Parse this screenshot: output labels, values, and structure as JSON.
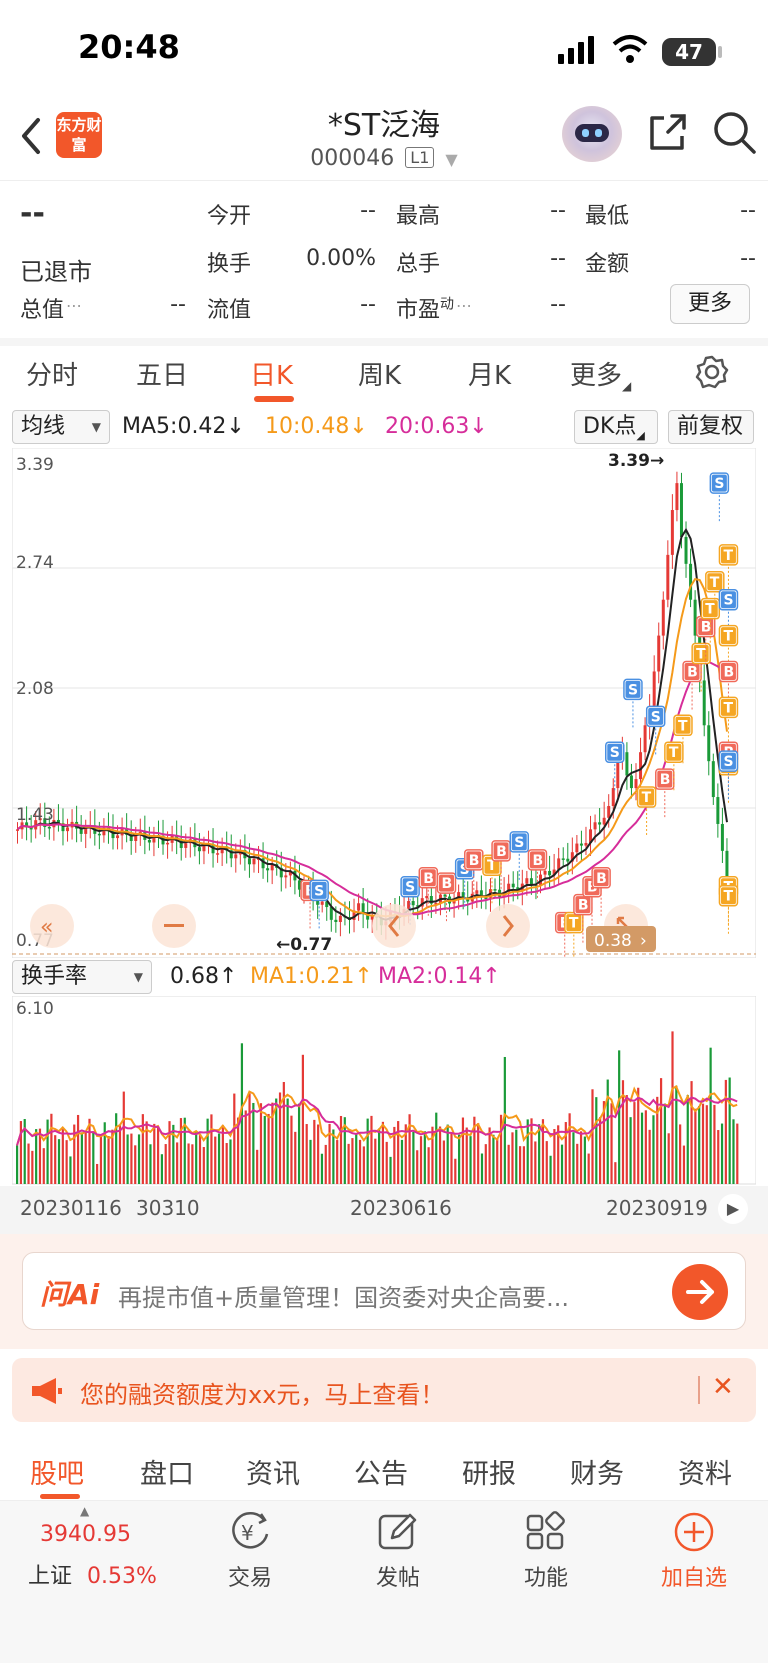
{
  "status_bar": {
    "time": "20:48",
    "battery": "47"
  },
  "header": {
    "logo_text": "东方财富",
    "title": "*ST泛海",
    "code": "000046",
    "board_badge": "L1"
  },
  "quote": {
    "price": "--",
    "status": "已退市",
    "rows": [
      [
        {
          "label": "今开",
          "value": "--"
        },
        {
          "label": "最高",
          "value": "--"
        },
        {
          "label": "最低",
          "value": "--"
        }
      ],
      [
        {
          "label": "换手",
          "value": "0.00%"
        },
        {
          "label": "总手",
          "value": "--"
        },
        {
          "label": "金额",
          "value": "--"
        }
      ],
      [
        {
          "label": "总值",
          "value": "--"
        },
        {
          "label": "流值",
          "value": "--"
        },
        {
          "label": "市盈",
          "sup": "动",
          "value": "--"
        }
      ]
    ],
    "more_label": "更多"
  },
  "period_tabs": {
    "items": [
      "分时",
      "五日",
      "日K",
      "周K",
      "月K",
      "更多"
    ],
    "active": "日K"
  },
  "ma_bar": {
    "selector": "均线",
    "ma5": "MA5:0.42↓",
    "ma10": "10:0.48↓",
    "ma20": "20:0.63↓",
    "dk": "DK点",
    "adjust": "前复权"
  },
  "kline": {
    "y_labels": [
      "3.39",
      "2.74",
      "2.08",
      "1.43",
      "0.77"
    ],
    "max_label": "3.39→",
    "min_label": "←0.77",
    "current_tag": "0.38",
    "colors": {
      "up": "#e53935",
      "down": "#1a9a38",
      "ma5": "#222222",
      "ma10": "#f59a1a",
      "ma20": "#d62d9a",
      "buy": "#f06a5a",
      "sell": "#4a90e2",
      "t": "#f5a623"
    }
  },
  "turnover": {
    "selector": "换手率",
    "value": "0.68↑",
    "ma1": "MA1:0.21↑",
    "ma2": "MA2:0.14↑",
    "max_label": "6.10"
  },
  "dates": [
    "20230116",
    "30310",
    "20230616",
    "20230919"
  ],
  "ai_bar": {
    "brand": "问Ai",
    "text": "再提市值+质量管理！国资委对央企高要..."
  },
  "promo": {
    "text": "您的融资额度为xx元，马上查看！"
  },
  "bottom_tabs": {
    "items": [
      "股吧",
      "盘口",
      "资讯",
      "公告",
      "研报",
      "财务",
      "资料"
    ],
    "active": "股吧"
  },
  "dock": {
    "index_value": "3940.95",
    "index_name": "上证",
    "index_change": "0.53%",
    "items": [
      "交易",
      "发帖",
      "功能",
      "加自选"
    ]
  }
}
